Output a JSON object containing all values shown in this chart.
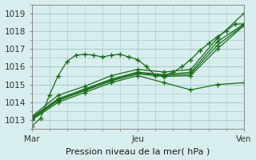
{
  "title": "",
  "xlabel": "Pression niveau de la mer( hPa )",
  "ylabel": "",
  "bg_color": "#d8eeee",
  "grid_color": "#aacccc",
  "line_color": "#1a6b1a",
  "ylim": [
    1012.5,
    1019.5
  ],
  "xtick_labels": [
    "Mar",
    "Jeu",
    "Ven"
  ],
  "xtick_positions": [
    0,
    48,
    96
  ],
  "ytick_labels": [
    "1013",
    "1014",
    "1015",
    "1016",
    "1017",
    "1018",
    "1019"
  ],
  "ytick_values": [
    1013,
    1014,
    1015,
    1016,
    1017,
    1018,
    1019
  ],
  "series": [
    {
      "x": [
        0,
        4,
        8,
        12,
        16,
        20,
        24,
        28,
        32,
        36,
        40,
        44,
        48,
        52,
        56,
        60,
        64,
        68,
        72,
        76,
        80,
        84,
        88,
        92,
        96
      ],
      "y": [
        1012.65,
        1013.1,
        1014.4,
        1015.5,
        1016.3,
        1016.65,
        1016.7,
        1016.65,
        1016.55,
        1016.65,
        1016.7,
        1016.55,
        1016.4,
        1016.0,
        1015.5,
        1015.5,
        1015.7,
        1016.0,
        1016.4,
        1016.9,
        1017.3,
        1017.7,
        1018.0,
        1018.4,
        1018.4
      ]
    },
    {
      "x": [
        0,
        12,
        24,
        36,
        48,
        60,
        72,
        84,
        96
      ],
      "y": [
        1013.0,
        1014.0,
        1014.55,
        1015.1,
        1015.5,
        1015.1,
        1014.7,
        1015.0,
        1015.1
      ]
    },
    {
      "x": [
        0,
        12,
        24,
        36,
        48,
        60,
        72,
        84,
        96
      ],
      "y": [
        1013.05,
        1014.1,
        1014.65,
        1015.2,
        1015.6,
        1015.45,
        1015.5,
        1017.0,
        1018.3
      ]
    },
    {
      "x": [
        0,
        12,
        24,
        36,
        48,
        60,
        72,
        84,
        96
      ],
      "y": [
        1013.1,
        1014.15,
        1014.7,
        1015.25,
        1015.65,
        1015.5,
        1015.6,
        1017.2,
        1018.35
      ]
    },
    {
      "x": [
        0,
        12,
        24,
        36,
        48,
        60,
        72,
        84,
        96
      ],
      "y": [
        1013.15,
        1014.2,
        1014.75,
        1015.3,
        1015.7,
        1015.55,
        1015.7,
        1017.4,
        1018.4
      ]
    },
    {
      "x": [
        0,
        12,
        24,
        36,
        48,
        60,
        72,
        84,
        96
      ],
      "y": [
        1013.2,
        1014.4,
        1014.9,
        1015.5,
        1015.85,
        1015.7,
        1015.85,
        1017.6,
        1019.0
      ]
    }
  ]
}
